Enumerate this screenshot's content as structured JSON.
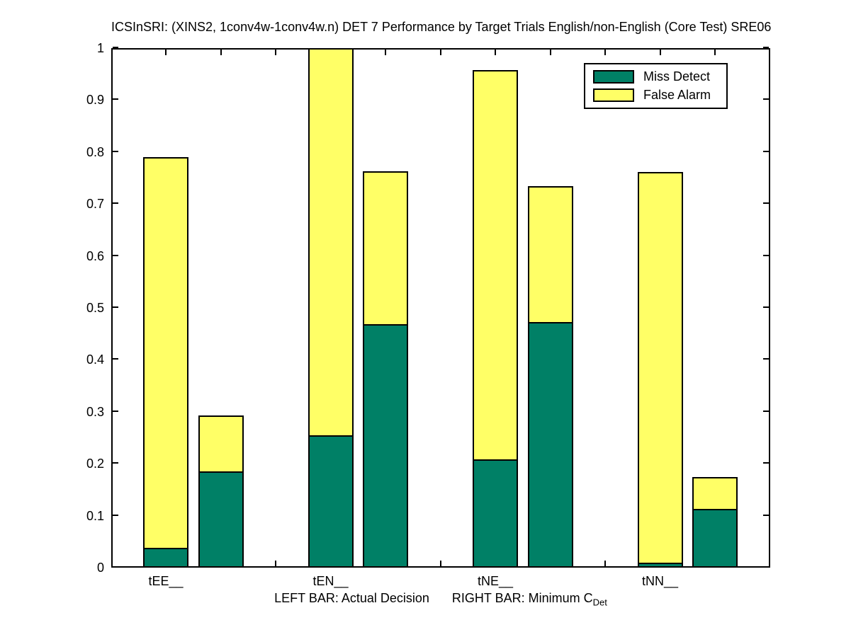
{
  "chart_data": {
    "type": "bar",
    "stacked": true,
    "title": "ICSInSRI: (XINS2, 1conv4w-1conv4w.n) DET 7 Performance by Target Trials English/non-English (Core Test) SRE06",
    "categories": [
      "tEE__",
      "tEN__",
      "tNE__",
      "tNN__"
    ],
    "left_bar_meaning": "Actual Decision",
    "right_bar_meaning": "Minimum C_Det",
    "series_order_bottom_to_top": [
      "Miss Detect",
      "False Alarm"
    ],
    "bars": [
      {
        "category": "tEE__",
        "left": {
          "miss_detect": 0.038,
          "false_alarm": 0.752,
          "total": 0.79
        },
        "right": {
          "miss_detect": 0.185,
          "false_alarm": 0.108,
          "total": 0.293
        }
      },
      {
        "category": "tEN__",
        "left": {
          "miss_detect": 0.255,
          "false_alarm": 0.745,
          "total": 1.0
        },
        "right": {
          "miss_detect": 0.469,
          "false_alarm": 0.294,
          "total": 0.763
        }
      },
      {
        "category": "tNE__",
        "left": {
          "miss_detect": 0.208,
          "false_alarm": 0.75,
          "total": 0.958
        },
        "right": {
          "miss_detect": 0.473,
          "false_alarm": 0.262,
          "total": 0.735
        }
      },
      {
        "category": "tNN__",
        "left": {
          "miss_detect": 0.01,
          "false_alarm": 0.751,
          "total": 0.761
        },
        "right": {
          "miss_detect": 0.113,
          "false_alarm": 0.062,
          "total": 0.175
        }
      }
    ],
    "ylim": [
      0,
      1
    ],
    "ytick_labels": [
      "0",
      "0.1",
      "0.2",
      "0.3",
      "0.4",
      "0.5",
      "0.6",
      "0.7",
      "0.8",
      "0.9",
      "1"
    ],
    "grid": false,
    "legend": {
      "position": "upper-right-inside",
      "entries": [
        {
          "label": "Miss Detect",
          "color": "#008066"
        },
        {
          "label": "False Alarm",
          "color": "#ffff66"
        }
      ]
    },
    "colors": {
      "miss_detect": "#008066",
      "false_alarm": "#ffff66",
      "edge": "#000000",
      "background": "#ffffff"
    }
  },
  "xlabel": {
    "left_bar_text": "LEFT BAR: Actual Decision",
    "right_bar_text": "RIGHT BAR: Minimum C",
    "subscript": "Det"
  }
}
